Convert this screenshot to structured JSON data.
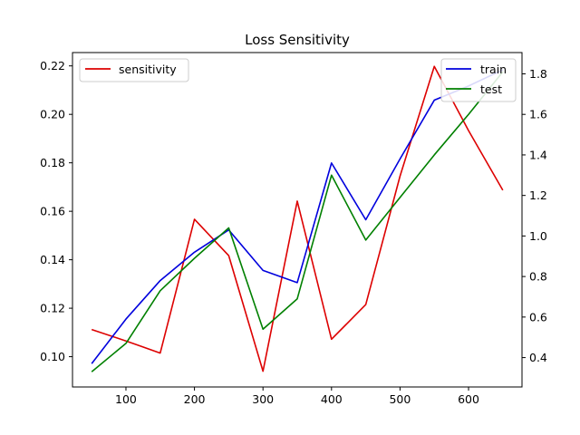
{
  "chart_data": {
    "type": "line",
    "title": "Loss Sensitivity",
    "x": [
      50,
      100,
      150,
      200,
      250,
      300,
      350,
      400,
      450,
      500,
      550,
      600,
      650
    ],
    "xticks": [
      100,
      200,
      300,
      400,
      500,
      600
    ],
    "xlim": [
      22,
      678
    ],
    "left_axis": {
      "ylim": [
        0.0875,
        0.2255
      ],
      "ticks": [
        0.1,
        0.12,
        0.14,
        0.16,
        0.18,
        0.2,
        0.22
      ],
      "tick_labels": [
        "0.10",
        "0.12",
        "0.14",
        "0.16",
        "0.18",
        "0.20",
        "0.22"
      ],
      "series": [
        {
          "name": "sensitivity",
          "color": "#dd0000",
          "values": [
            0.1112,
            0.1065,
            0.1015,
            0.1567,
            0.1417,
            0.094,
            0.1642,
            0.1072,
            0.1215,
            0.1745,
            0.2198,
            0.1933,
            0.1687
          ]
        }
      ],
      "legend_position": "top-left"
    },
    "right_axis": {
      "ylim": [
        0.255,
        1.905
      ],
      "ticks": [
        0.4,
        0.6,
        0.8,
        1.0,
        1.2,
        1.4,
        1.6,
        1.8
      ],
      "tick_labels": [
        "0.4",
        "0.6",
        "0.8",
        "1.0",
        "1.2",
        "1.4",
        "1.6",
        "1.8"
      ],
      "series": [
        {
          "name": "train",
          "color": "#0000dd",
          "values": [
            0.37,
            0.59,
            0.78,
            0.92,
            1.03,
            0.83,
            0.77,
            1.36,
            1.08,
            1.38,
            1.67,
            1.74,
            1.82
          ]
        },
        {
          "name": "test",
          "color": "#008000",
          "values": [
            0.33,
            0.47,
            0.73,
            0.89,
            1.04,
            0.54,
            0.69,
            1.3,
            0.98,
            1.19,
            1.4,
            1.6,
            1.81
          ]
        }
      ],
      "legend_position": "top-right"
    },
    "grid": false
  }
}
